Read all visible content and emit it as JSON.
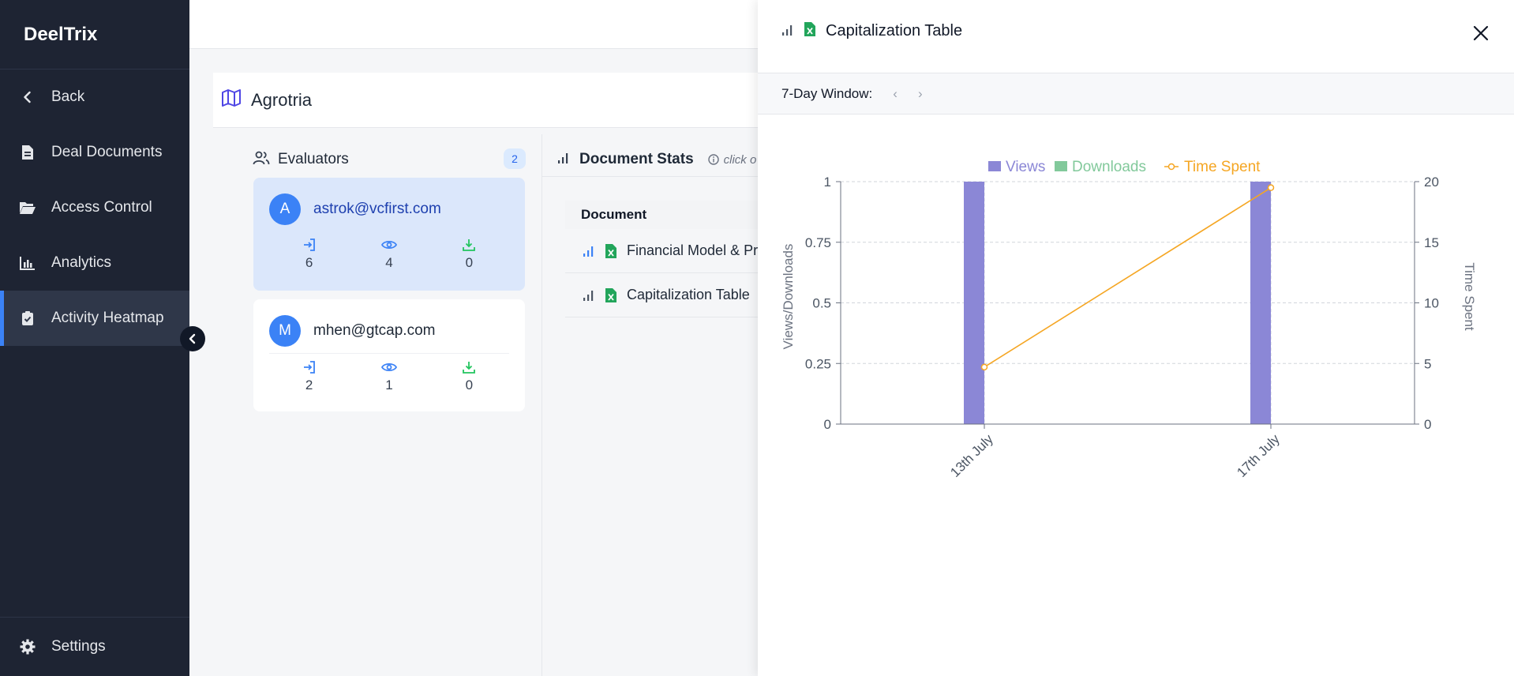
{
  "app": {
    "brand": "DeelTrix"
  },
  "sidebar": {
    "items": [
      {
        "label": "Back",
        "icon": "chevron-left-icon"
      },
      {
        "label": "Deal Documents",
        "icon": "document-icon"
      },
      {
        "label": "Access Control",
        "icon": "folder-open-icon"
      },
      {
        "label": "Analytics",
        "icon": "bar-chart-icon"
      },
      {
        "label": "Activity Heatmap",
        "icon": "clipboard-check-icon",
        "active": true
      }
    ],
    "bottom": {
      "label": "Settings",
      "icon": "gear-icon"
    }
  },
  "project": {
    "title": "Agrotria"
  },
  "evaluators": {
    "heading": "Evaluators",
    "count": "2",
    "list": [
      {
        "initial": "A",
        "email": "astrok@vcfirst.com",
        "logins": "6",
        "views": "4",
        "downloads": "0",
        "selected": true
      },
      {
        "initial": "M",
        "email": "mhen@gtcap.com",
        "logins": "2",
        "views": "1",
        "downloads": "0",
        "selected": false
      }
    ]
  },
  "doc_stats": {
    "heading": "Document Stats",
    "hint": "click o",
    "column_header": "Document",
    "rows": [
      {
        "name": "Financial Model & Pr"
      },
      {
        "name": "Capitalization Table"
      }
    ]
  },
  "drawer": {
    "title": "Capitalization Table",
    "window_label": "7-Day Window:",
    "prev": "‹",
    "next": "›"
  },
  "colors": {
    "views": "#8b87d6",
    "downloads": "#82c99b",
    "time_spent": "#f5a623",
    "accent": "#3b82f6",
    "sidebar_bg": "#1e2433"
  },
  "chart_data": {
    "type": "bar",
    "categories": [
      "13th July",
      "17th July"
    ],
    "series": [
      {
        "name": "Views",
        "type": "bar",
        "axis": "left",
        "values": [
          1,
          1
        ]
      },
      {
        "name": "Downloads",
        "type": "bar",
        "axis": "left",
        "values": [
          0,
          0
        ]
      },
      {
        "name": "Time Spent",
        "type": "line",
        "axis": "right",
        "values": [
          4.7,
          19.5
        ]
      }
    ],
    "ylabel": "Views/Downloads",
    "y2label": "Time Spent",
    "ylim": [
      0,
      1
    ],
    "y2lim": [
      0,
      20
    ],
    "yticks": [
      "0",
      "0.25",
      "0.5",
      "0.75",
      "1"
    ],
    "y2ticks": [
      "0",
      "5",
      "10",
      "15",
      "20"
    ],
    "legend": "top",
    "grid": true
  }
}
